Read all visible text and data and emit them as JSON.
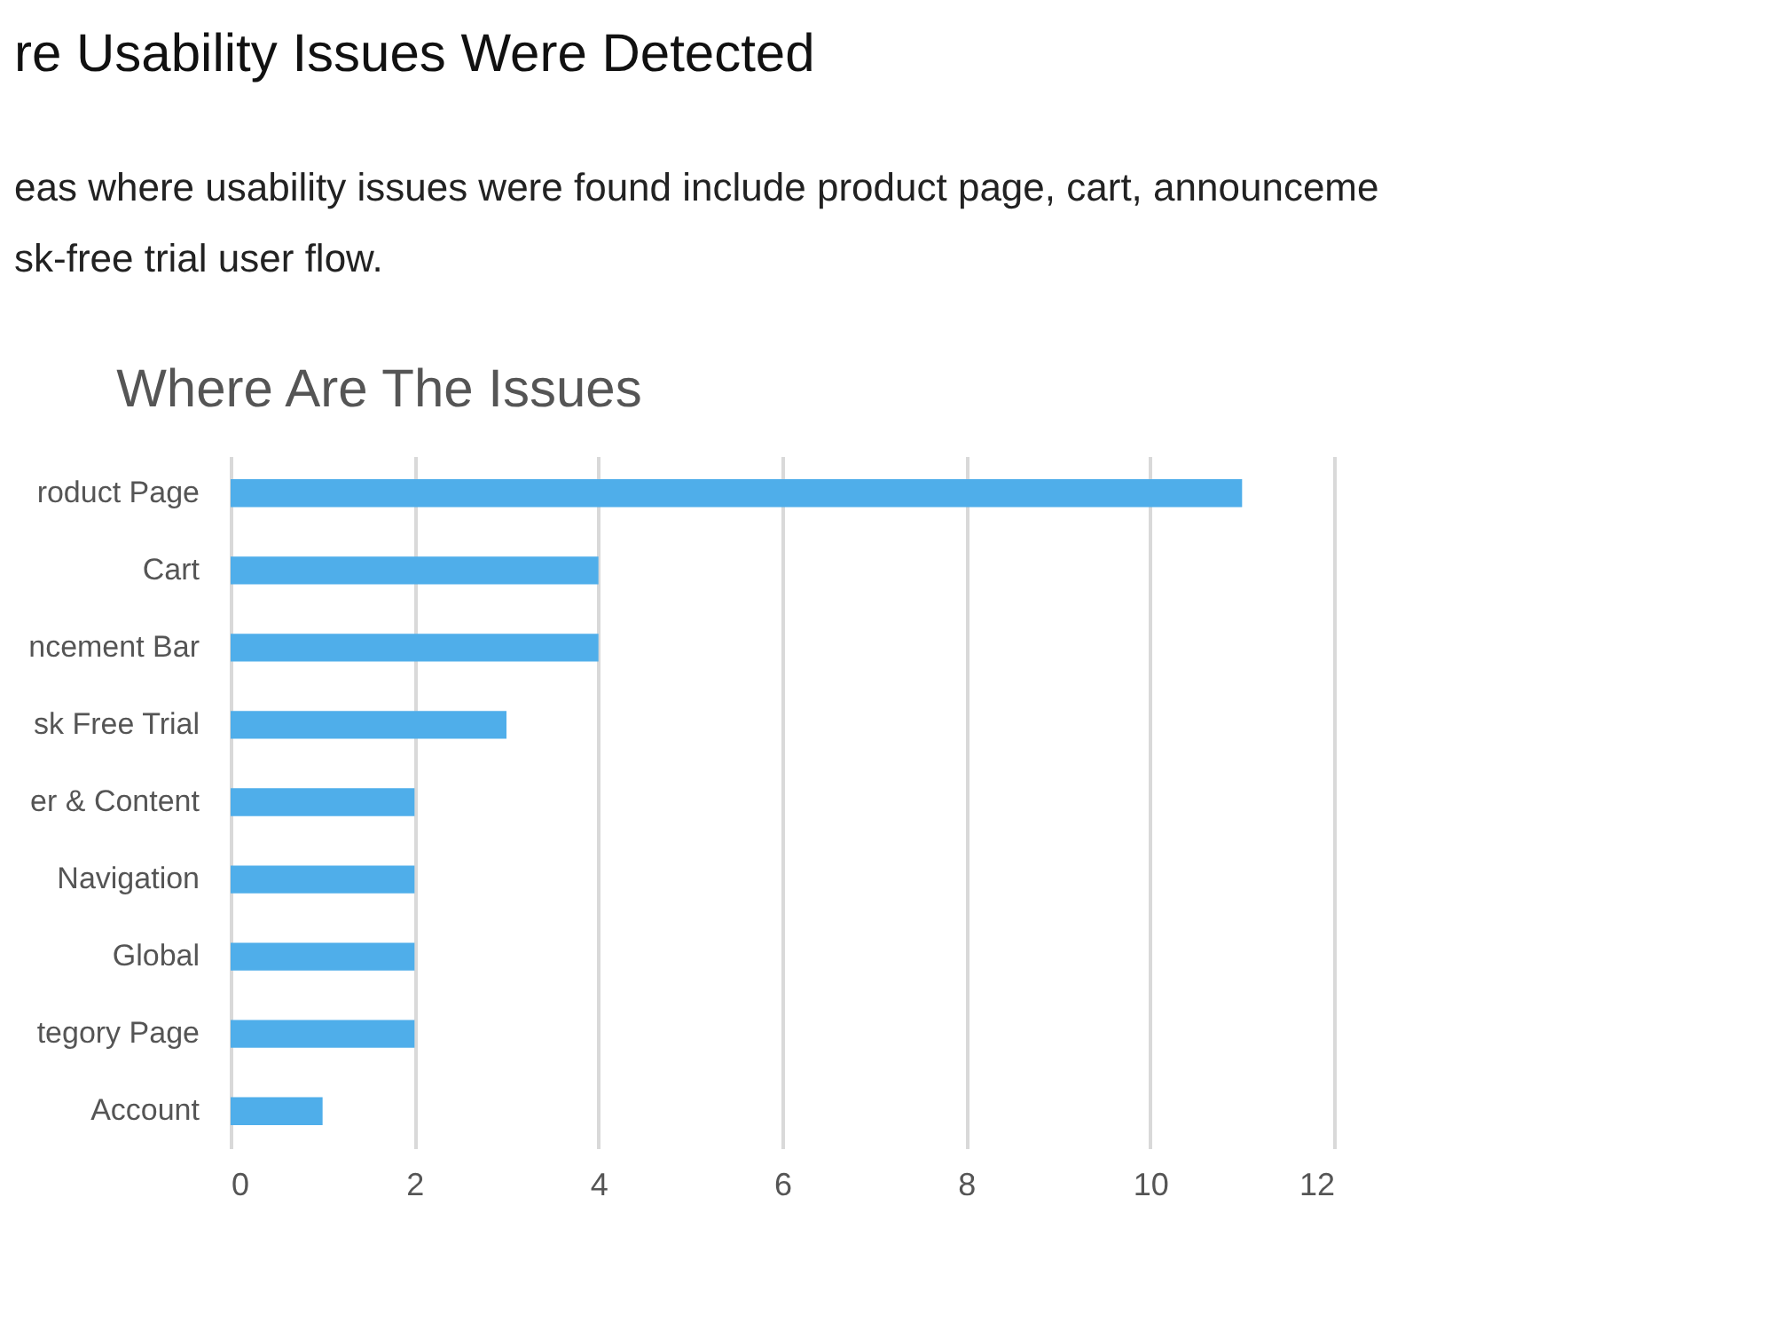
{
  "chart_data": {
    "type": "bar",
    "title": "re Usability Issues Were Detected",
    "subtitle": "eas where usability issues were found include product page, cart, announceme\nsk-free trial user flow.",
    "annotations": [
      "Where Are The Issues"
    ],
    "orientation": "horizontal",
    "categories": [
      "roduct Page",
      "Cart",
      "ncement Bar",
      "sk Free Trial",
      "er & Content",
      "Navigation",
      "Global",
      "tegory Page",
      "Account"
    ],
    "values": [
      11,
      4,
      4,
      3,
      2,
      2,
      2,
      2,
      1
    ],
    "color": "#4faeea",
    "xlim": [
      0,
      12
    ],
    "xticks": [
      0,
      2,
      4,
      6,
      8,
      10,
      12
    ],
    "grid": "x"
  }
}
